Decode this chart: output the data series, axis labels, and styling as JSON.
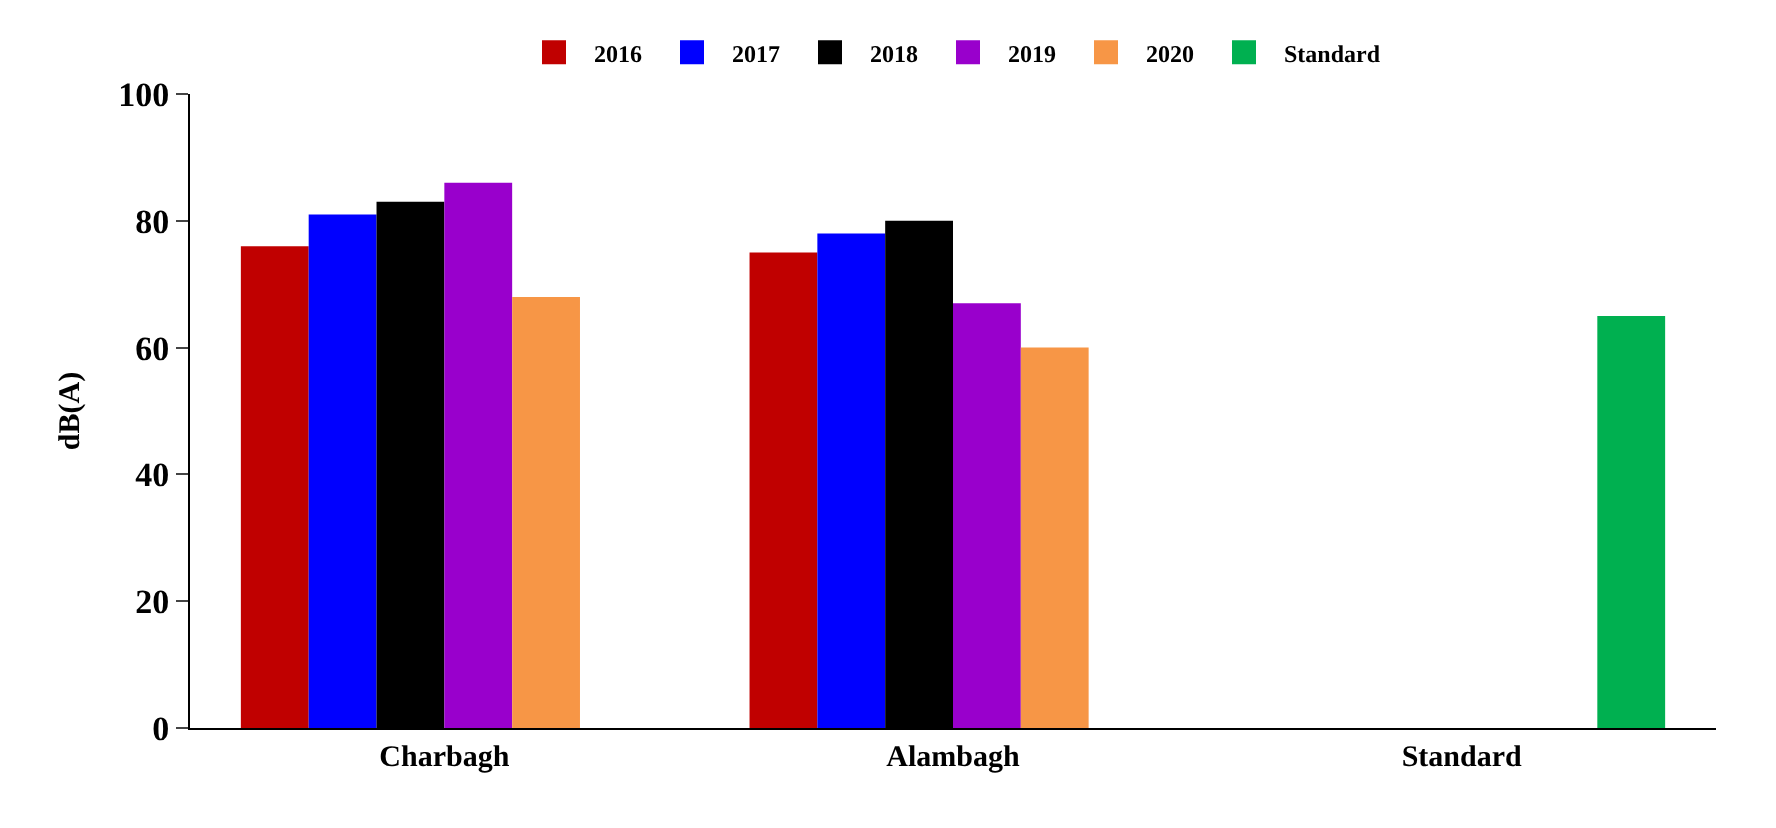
{
  "chart_data": {
    "type": "bar",
    "ylabel": "dB(A)",
    "categories": [
      "Charbagh",
      "Alambagh",
      "Standard"
    ],
    "series": [
      {
        "name": "2016",
        "color": "#c00000",
        "values": [
          76,
          75,
          null
        ]
      },
      {
        "name": "2017",
        "color": "#0000ff",
        "values": [
          81,
          78,
          null
        ]
      },
      {
        "name": "2018",
        "color": "#000000",
        "values": [
          83,
          80,
          null
        ]
      },
      {
        "name": "2019",
        "color": "#9900cc",
        "values": [
          86,
          67,
          null
        ]
      },
      {
        "name": "2020",
        "color": "#f79646",
        "values": [
          68,
          60,
          null
        ]
      },
      {
        "name": "Standard",
        "color": "#00b050",
        "values": [
          null,
          null,
          65
        ]
      }
    ],
    "ylim": [
      0,
      100
    ],
    "yticks": [
      0,
      20,
      40,
      60,
      80,
      100
    ],
    "legend": "top"
  }
}
